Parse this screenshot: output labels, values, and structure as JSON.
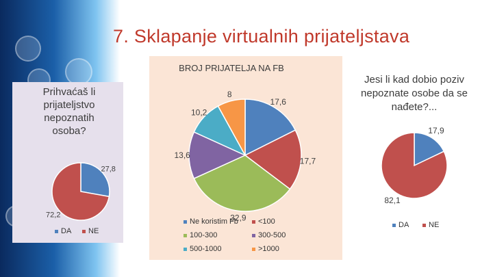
{
  "slide": {
    "title": "7. Sklapanje virtualnih prijateljstava",
    "decor_icons": [
      "tv-icon",
      "wifi-icon",
      "camera-icon",
      "globe-icon"
    ]
  },
  "chart_data": [
    {
      "type": "pie",
      "title": "Prihvaćaš li prijateljstvo nepoznatih osoba?",
      "categories": [
        "DA",
        "NE"
      ],
      "values": [
        27.8,
        72.2
      ],
      "labels": [
        "27,8",
        "72,2"
      ],
      "colors": [
        "#4f81bd",
        "#c0504d"
      ],
      "legend": "bottom"
    },
    {
      "type": "pie",
      "title": "BROJ PRIJATELJA NA FB",
      "categories": [
        "Ne koristim Fb",
        "<100",
        "100-300",
        "300-500",
        "500-1000",
        ">1000"
      ],
      "values": [
        17.6,
        17.7,
        32.9,
        13.6,
        10.2,
        8
      ],
      "labels": [
        "17,6",
        "17,7",
        "32,9",
        "13,6",
        "10,2",
        "8"
      ],
      "colors": [
        "#4f81bd",
        "#c0504d",
        "#9bbb59",
        "#8064a2",
        "#4bacc6",
        "#f79646"
      ],
      "legend": "bottom"
    },
    {
      "type": "pie",
      "title": "Jesi li kad dobio poziv nepoznate osobe da se nađete?...",
      "categories": [
        "DA",
        "NE"
      ],
      "values": [
        17.9,
        82.1
      ],
      "labels": [
        "17,9",
        "82,1"
      ],
      "colors": [
        "#4f81bd",
        "#c0504d"
      ],
      "legend": "bottom"
    }
  ]
}
